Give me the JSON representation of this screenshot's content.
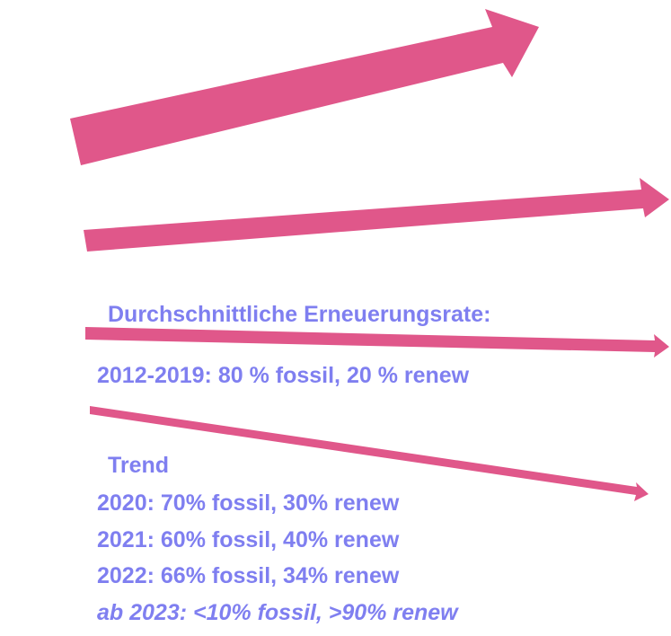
{
  "heading": "Durchschnittliche Erneuerungsrate:",
  "period_line": "2012-2019: 80 % fossil, 20 % renew",
  "trend_label": "Trend",
  "trend_lines": [
    "2020: 70% fossil, 30% renew",
    "2021: 60% fossil, 40% renew",
    "2022: 66% fossil, 34% renew",
    "ab 2023: <10% fossil, >90% renew"
  ]
}
